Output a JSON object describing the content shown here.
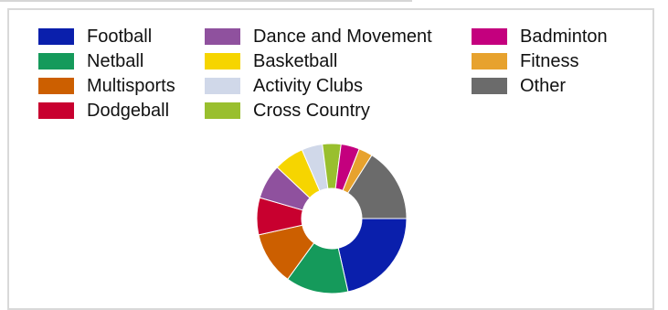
{
  "chart_data": {
    "type": "pie",
    "donut": true,
    "legend_position": "top",
    "title": "",
    "categories": [
      "Football",
      "Netball",
      "Multisports",
      "Dodgeball",
      "Dance and Movement",
      "Basketball",
      "Activity Clubs",
      "Cross Country",
      "Badminton",
      "Fitness",
      "Other"
    ],
    "values": [
      21.5,
      13.5,
      11.5,
      8,
      7.5,
      6.5,
      4.5,
      4,
      4,
      3,
      16
    ],
    "colors": [
      "#0a1fac",
      "#159a5b",
      "#cc5f00",
      "#c8002f",
      "#8f519e",
      "#f6d500",
      "#d0d8e9",
      "#99bf2e",
      "#c4007e",
      "#e7a22e",
      "#6b6b6b"
    ]
  }
}
